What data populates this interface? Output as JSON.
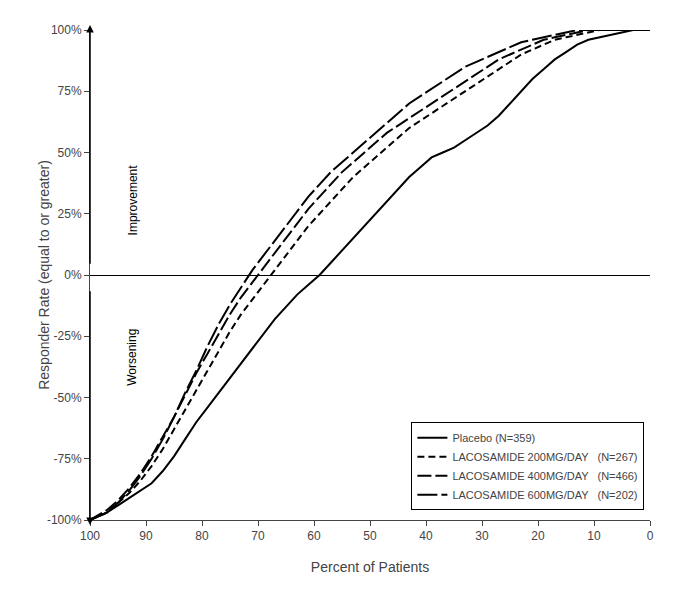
{
  "chart_data": {
    "type": "line",
    "xlabel": "Percent of Patients",
    "ylabel": "Responder Rate (equal to or greater)",
    "xlim": [
      100,
      0
    ],
    "ylim": [
      -1.0,
      1.0
    ],
    "xticks": [
      100,
      90,
      80,
      70,
      60,
      50,
      40,
      30,
      20,
      10,
      0
    ],
    "yticks": [
      {
        "value": -1.0,
        "label": "-100%"
      },
      {
        "value": -0.75,
        "label": "-75%"
      },
      {
        "value": -0.5,
        "label": "-50%"
      },
      {
        "value": -0.25,
        "label": "-25%"
      },
      {
        "value": 0.0,
        "label": "0%"
      },
      {
        "value": 0.25,
        "label": "25%"
      },
      {
        "value": 0.5,
        "label": "50%"
      },
      {
        "value": 0.75,
        "label": "75%"
      },
      {
        "value": 1.0,
        "label": "100%"
      }
    ],
    "grid": false,
    "legend": "lower right",
    "annotations": [
      "Improvement",
      "Worsening"
    ],
    "x": [
      100,
      97,
      95,
      93,
      91,
      89,
      87,
      85,
      83,
      81,
      79,
      77,
      75,
      73,
      71,
      69,
      67,
      65,
      63,
      61,
      59,
      57,
      55,
      53,
      51,
      49,
      47,
      45,
      43,
      41,
      39,
      37,
      35,
      33,
      31,
      29,
      27,
      25,
      23,
      21,
      19,
      17,
      15,
      13,
      11,
      9,
      7,
      5,
      3,
      1,
      0
    ],
    "series": [
      {
        "name": "Placebo (N=359)",
        "color": "#000000",
        "line_style": "solid",
        "values": [
          -1.0,
          -0.97,
          -0.94,
          -0.91,
          -0.88,
          -0.85,
          -0.8,
          -0.74,
          -0.67,
          -0.6,
          -0.54,
          -0.48,
          -0.42,
          -0.36,
          -0.3,
          -0.24,
          -0.18,
          -0.13,
          -0.08,
          -0.04,
          0.0,
          0.05,
          0.1,
          0.15,
          0.2,
          0.25,
          0.3,
          0.35,
          0.4,
          0.44,
          0.48,
          0.5,
          0.52,
          0.55,
          0.58,
          0.61,
          0.65,
          0.7,
          0.75,
          0.8,
          0.84,
          0.88,
          0.91,
          0.94,
          0.96,
          0.97,
          0.98,
          0.99,
          1.0,
          1.0,
          1.0
        ]
      },
      {
        "name": "LACOSAMIDE 200MG/DAY   (N=267)",
        "color": "#000000",
        "line_style": "short_dash",
        "values": [
          -1.0,
          -0.97,
          -0.93,
          -0.89,
          -0.84,
          -0.78,
          -0.71,
          -0.63,
          -0.55,
          -0.47,
          -0.39,
          -0.31,
          -0.23,
          -0.16,
          -0.1,
          -0.04,
          0.02,
          0.08,
          0.14,
          0.2,
          0.25,
          0.3,
          0.35,
          0.4,
          0.44,
          0.48,
          0.52,
          0.56,
          0.6,
          0.63,
          0.66,
          0.69,
          0.72,
          0.75,
          0.78,
          0.81,
          0.84,
          0.87,
          0.9,
          0.92,
          0.94,
          0.96,
          0.97,
          0.98,
          0.99,
          1.0,
          1.0,
          1.0,
          1.0,
          1.0,
          1.0
        ]
      },
      {
        "name": "LACOSAMIDE 400MG/DAY   (N=466)",
        "color": "#000000",
        "line_style": "long_dash",
        "values": [
          -1.0,
          -0.96,
          -0.92,
          -0.87,
          -0.81,
          -0.74,
          -0.66,
          -0.58,
          -0.49,
          -0.4,
          -0.32,
          -0.24,
          -0.16,
          -0.09,
          -0.03,
          0.03,
          0.09,
          0.15,
          0.21,
          0.27,
          0.32,
          0.37,
          0.42,
          0.46,
          0.5,
          0.54,
          0.58,
          0.61,
          0.64,
          0.67,
          0.7,
          0.73,
          0.76,
          0.79,
          0.82,
          0.85,
          0.88,
          0.9,
          0.92,
          0.94,
          0.96,
          0.97,
          0.98,
          0.99,
          1.0,
          1.0,
          1.0,
          1.0,
          1.0,
          1.0,
          1.0
        ]
      },
      {
        "name": "LACOSAMIDE 600MG/DAY   (N=202)",
        "color": "#000000",
        "line_style": "extra_long_dash",
        "values": [
          -1.0,
          -0.97,
          -0.93,
          -0.88,
          -0.82,
          -0.75,
          -0.67,
          -0.58,
          -0.48,
          -0.39,
          -0.29,
          -0.2,
          -0.12,
          -0.05,
          0.02,
          0.08,
          0.14,
          0.2,
          0.26,
          0.32,
          0.37,
          0.42,
          0.46,
          0.5,
          0.54,
          0.58,
          0.62,
          0.66,
          0.7,
          0.73,
          0.76,
          0.79,
          0.82,
          0.85,
          0.87,
          0.89,
          0.91,
          0.93,
          0.95,
          0.96,
          0.97,
          0.98,
          0.99,
          1.0,
          1.0,
          1.0,
          1.0,
          1.0,
          1.0,
          1.0,
          1.0
        ]
      }
    ]
  }
}
